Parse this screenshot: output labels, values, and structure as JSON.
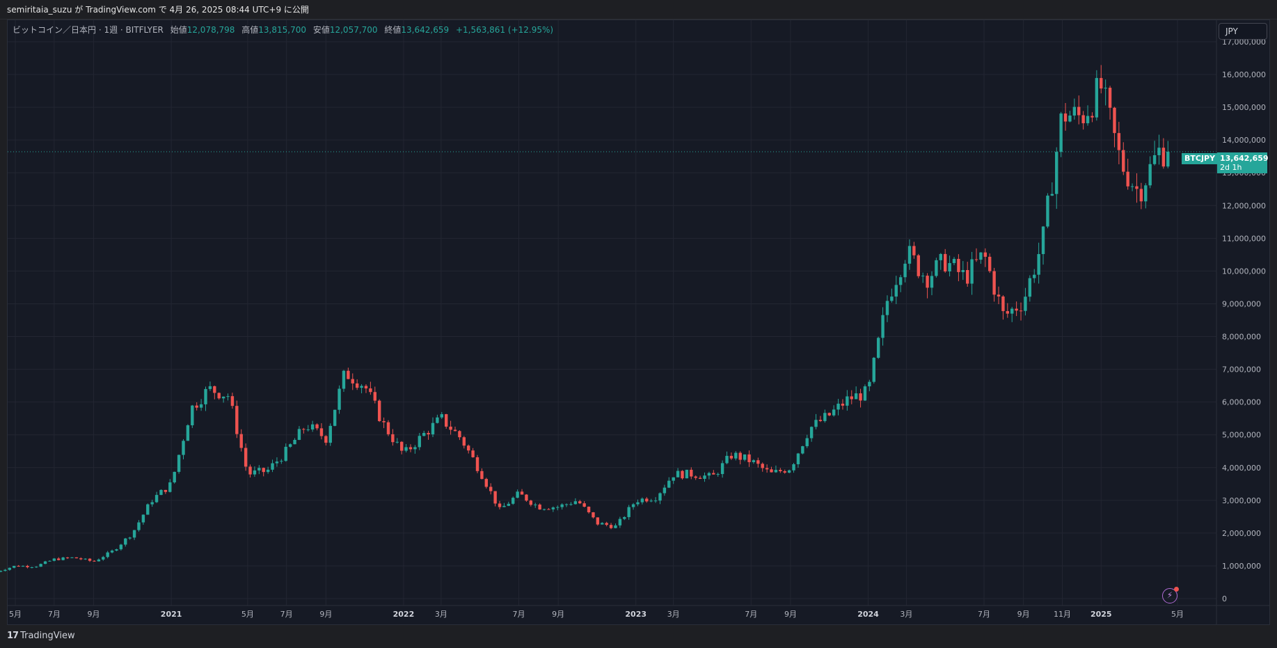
{
  "header": {
    "publish_line": "semiritaia_suzu が TradingView.com で 4月 26, 2025 08:44 UTC+9 に公開"
  },
  "legend": {
    "symbol_desc": "ビットコイン／日本円 · 1週 · BITFLYER",
    "open_label": "始値",
    "open_value": "12,078,798",
    "high_label": "高値",
    "high_value": "13,815,700",
    "low_label": "安値",
    "low_value": "12,057,700",
    "close_label": "終値",
    "close_value": "13,642,659",
    "change": "+1,563,861 (+12.95%)"
  },
  "currency_button": "JPY",
  "price_label": {
    "symbol": "BTCJPY",
    "price": "13,642,659",
    "countdown": "2d 1h"
  },
  "footer": {
    "brand": "TradingView",
    "logo_glyph": "17"
  },
  "chart_data": {
    "type": "candlestick",
    "symbol": "BTCJPY",
    "interval": "1W",
    "exchange": "BITFLYER",
    "currency": "JPY",
    "ylim": [
      0,
      17500000
    ],
    "y_ticks": [
      {
        "value": 0,
        "label": "0"
      },
      {
        "value": 1000000,
        "label": "1,000,000"
      },
      {
        "value": 2000000,
        "label": "2,000,000"
      },
      {
        "value": 3000000,
        "label": "3,000,000"
      },
      {
        "value": 4000000,
        "label": "4,000,000"
      },
      {
        "value": 5000000,
        "label": "5,000,000"
      },
      {
        "value": 6000000,
        "label": "6,000,000"
      },
      {
        "value": 7000000,
        "label": "7,000,000"
      },
      {
        "value": 8000000,
        "label": "8,000,000"
      },
      {
        "value": 9000000,
        "label": "9,000,000"
      },
      {
        "value": 10000000,
        "label": "10,000,000"
      },
      {
        "value": 11000000,
        "label": "11,000,000"
      },
      {
        "value": 12000000,
        "label": "12,000,000"
      },
      {
        "value": 13000000,
        "label": "13,000,000"
      },
      {
        "value": 14000000,
        "label": "14,000,000"
      },
      {
        "value": 15000000,
        "label": "15,000,000"
      },
      {
        "value": 16000000,
        "label": "16,000,000"
      },
      {
        "value": 17000000,
        "label": "17,000,000"
      }
    ],
    "x_ticks": [
      {
        "date": "2020-05-01",
        "label": "5月"
      },
      {
        "date": "2020-07-01",
        "label": "7月"
      },
      {
        "date": "2020-09-01",
        "label": "9月"
      },
      {
        "date": "2021-01-01",
        "label": "2021",
        "bold": true
      },
      {
        "date": "2021-05-01",
        "label": "5月"
      },
      {
        "date": "2021-07-01",
        "label": "7月"
      },
      {
        "date": "2021-09-01",
        "label": "9月"
      },
      {
        "date": "2022-01-01",
        "label": "2022",
        "bold": true
      },
      {
        "date": "2022-03-01",
        "label": "3月"
      },
      {
        "date": "2022-07-01",
        "label": "7月"
      },
      {
        "date": "2022-09-01",
        "label": "9月"
      },
      {
        "date": "2023-01-01",
        "label": "2023",
        "bold": true
      },
      {
        "date": "2023-03-01",
        "label": "3月"
      },
      {
        "date": "2023-07-01",
        "label": "7月"
      },
      {
        "date": "2023-09-01",
        "label": "9月"
      },
      {
        "date": "2024-01-01",
        "label": "2024",
        "bold": true
      },
      {
        "date": "2024-03-01",
        "label": "3月"
      },
      {
        "date": "2024-07-01",
        "label": "7月"
      },
      {
        "date": "2024-09-01",
        "label": "9月"
      },
      {
        "date": "2024-11-01",
        "label": "11月"
      },
      {
        "date": "2025-01-01",
        "label": "2025",
        "bold": true
      },
      {
        "date": "2025-05-01",
        "label": "5月"
      }
    ],
    "current_price": 13642659,
    "colors": {
      "up": "#26a69a",
      "down": "#ef5350",
      "grid": "#232632",
      "text": "#b2b5be"
    },
    "series_monthly_closes": [
      {
        "date": "2020-04-01",
        "close": 820000
      },
      {
        "date": "2020-05-01",
        "close": 1000000
      },
      {
        "date": "2020-06-01",
        "close": 980000
      },
      {
        "date": "2020-07-01",
        "close": 1200000
      },
      {
        "date": "2020-08-01",
        "close": 1250000
      },
      {
        "date": "2020-09-01",
        "close": 1130000
      },
      {
        "date": "2020-10-01",
        "close": 1450000
      },
      {
        "date": "2020-11-01",
        "close": 2000000
      },
      {
        "date": "2020-12-01",
        "close": 3000000
      },
      {
        "date": "2021-01-01",
        "close": 3500000
      },
      {
        "date": "2021-02-01",
        "close": 5800000
      },
      {
        "date": "2021-03-01",
        "close": 6400000
      },
      {
        "date": "2021-04-01",
        "close": 6200000
      },
      {
        "date": "2021-05-01",
        "close": 3800000
      },
      {
        "date": "2021-06-01",
        "close": 3900000
      },
      {
        "date": "2021-07-01",
        "close": 4500000
      },
      {
        "date": "2021-08-01",
        "close": 5300000
      },
      {
        "date": "2021-09-01",
        "close": 4900000
      },
      {
        "date": "2021-10-01",
        "close": 6900000
      },
      {
        "date": "2021-11-01",
        "close": 6500000
      },
      {
        "date": "2021-12-01",
        "close": 5300000
      },
      {
        "date": "2022-01-01",
        "close": 4400000
      },
      {
        "date": "2022-02-01",
        "close": 5000000
      },
      {
        "date": "2022-03-01",
        "close": 5500000
      },
      {
        "date": "2022-04-01",
        "close": 4900000
      },
      {
        "date": "2022-05-01",
        "close": 3900000
      },
      {
        "date": "2022-06-01",
        "close": 2700000
      },
      {
        "date": "2022-07-01",
        "close": 3200000
      },
      {
        "date": "2022-08-01",
        "close": 2800000
      },
      {
        "date": "2022-09-01",
        "close": 2800000
      },
      {
        "date": "2022-10-01",
        "close": 3000000
      },
      {
        "date": "2022-11-01",
        "close": 2300000
      },
      {
        "date": "2022-12-01",
        "close": 2200000
      },
      {
        "date": "2023-01-01",
        "close": 3000000
      },
      {
        "date": "2023-02-01",
        "close": 3100000
      },
      {
        "date": "2023-03-01",
        "close": 3800000
      },
      {
        "date": "2023-04-01",
        "close": 3800000
      },
      {
        "date": "2023-05-01",
        "close": 3700000
      },
      {
        "date": "2023-06-01",
        "close": 4400000
      },
      {
        "date": "2023-07-01",
        "close": 4200000
      },
      {
        "date": "2023-08-01",
        "close": 3800000
      },
      {
        "date": "2023-09-01",
        "close": 4000000
      },
      {
        "date": "2023-10-01",
        "close": 5200000
      },
      {
        "date": "2023-11-01",
        "close": 5600000
      },
      {
        "date": "2023-12-01",
        "close": 6100000
      },
      {
        "date": "2024-01-01",
        "close": 6300000
      },
      {
        "date": "2024-02-01",
        "close": 9200000
      },
      {
        "date": "2024-03-01",
        "close": 10600000
      },
      {
        "date": "2024-04-01",
        "close": 9800000
      },
      {
        "date": "2024-05-01",
        "close": 10300000
      },
      {
        "date": "2024-06-01",
        "close": 9800000
      },
      {
        "date": "2024-07-01",
        "close": 10500000
      },
      {
        "date": "2024-08-01",
        "close": 8600000
      },
      {
        "date": "2024-09-01",
        "close": 9100000
      },
      {
        "date": "2024-10-01",
        "close": 10900000
      },
      {
        "date": "2024-11-01",
        "close": 14800000
      },
      {
        "date": "2024-12-01",
        "close": 14700000
      },
      {
        "date": "2025-01-01",
        "close": 15600000
      },
      {
        "date": "2025-02-01",
        "close": 13300000
      },
      {
        "date": "2025-03-01",
        "close": 12400000
      },
      {
        "date": "2025-04-01",
        "close": 13642659
      }
    ]
  }
}
